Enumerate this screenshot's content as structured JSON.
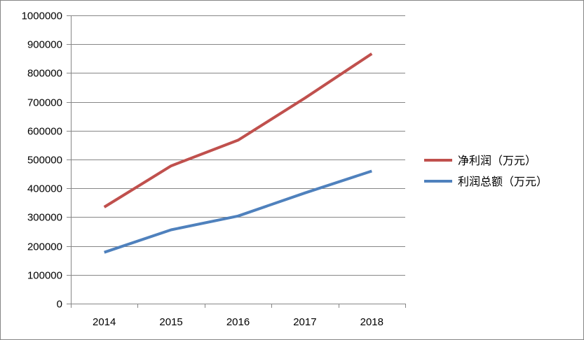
{
  "chart_data": {
    "type": "line",
    "title": "",
    "xlabel": "",
    "ylabel": "",
    "categories": [
      "2014",
      "2015",
      "2016",
      "2017",
      "2018"
    ],
    "ylim": [
      0,
      1000000
    ],
    "y_ticks": [
      "0",
      "100000",
      "200000",
      "300000",
      "400000",
      "500000",
      "600000",
      "700000",
      "800000",
      "900000",
      "1000000"
    ],
    "grid": true,
    "legend_position": "right",
    "series": [
      {
        "name": "净利润（万元）",
        "color": "#c0504d",
        "values": [
          335000,
          478000,
          567000,
          713000,
          867000
        ]
      },
      {
        "name": "利润总额（万元）",
        "color": "#4f81bd",
        "values": [
          178000,
          256000,
          304000,
          384000,
          460000
        ]
      }
    ]
  }
}
